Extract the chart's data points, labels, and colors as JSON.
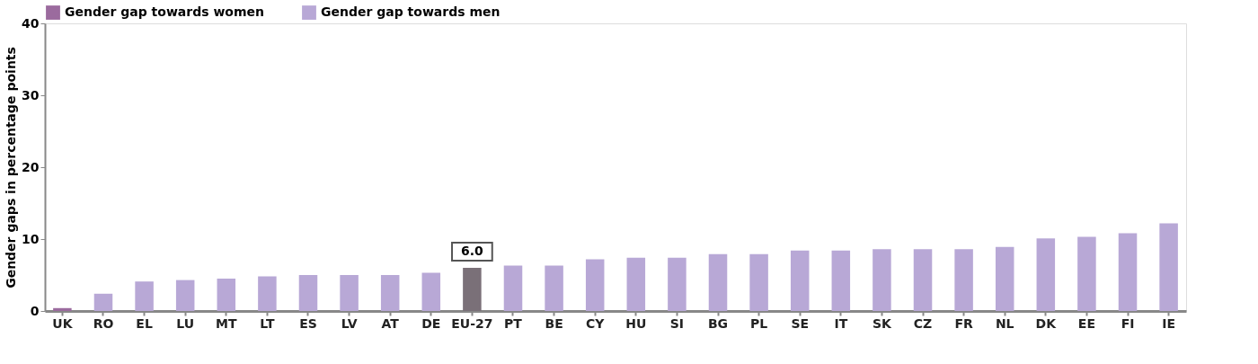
{
  "chart_data": {
    "type": "bar",
    "categories": [
      "UK",
      "RO",
      "EL",
      "LU",
      "MT",
      "LT",
      "ES",
      "LV",
      "AT",
      "DE",
      "EU-27",
      "PT",
      "BE",
      "CY",
      "HU",
      "SI",
      "BG",
      "PL",
      "SE",
      "IT",
      "SK",
      "CZ",
      "FR",
      "NL",
      "DK",
      "EE",
      "FI",
      "IE"
    ],
    "series": [
      {
        "name": "Gender gap towards women",
        "color": "#9b6b9e",
        "values": [
          0.4,
          null,
          null,
          null,
          null,
          null,
          null,
          null,
          null,
          null,
          null,
          null,
          null,
          null,
          null,
          null,
          null,
          null,
          null,
          null,
          null,
          null,
          null,
          null,
          null,
          null,
          null,
          null
        ]
      },
      {
        "name": "Gender gap towards men",
        "color": "#b8a8d6",
        "values": [
          null,
          2.4,
          4.1,
          4.3,
          4.5,
          4.8,
          5.0,
          5.0,
          5.0,
          5.3,
          null,
          6.3,
          6.3,
          7.2,
          7.4,
          7.4,
          7.9,
          7.9,
          8.4,
          8.4,
          8.6,
          8.6,
          8.6,
          8.9,
          10.1,
          10.3,
          10.8,
          12.2
        ]
      },
      {
        "color": "#7a7078",
        "values": [
          null,
          null,
          null,
          null,
          null,
          null,
          null,
          null,
          null,
          null,
          6.0,
          null,
          null,
          null,
          null,
          null,
          null,
          null,
          null,
          null,
          null,
          null,
          null,
          null,
          null,
          null,
          null,
          null
        ]
      }
    ],
    "ylabel": "Gender  gaps in percentage points",
    "ylim": [
      0,
      40
    ],
    "yticks": [
      0,
      10,
      20,
      30,
      40
    ],
    "annotations": [
      {
        "text": "6.0",
        "x": "EU-27",
        "y": 6.0
      }
    ],
    "grid": false,
    "legend": "top"
  }
}
